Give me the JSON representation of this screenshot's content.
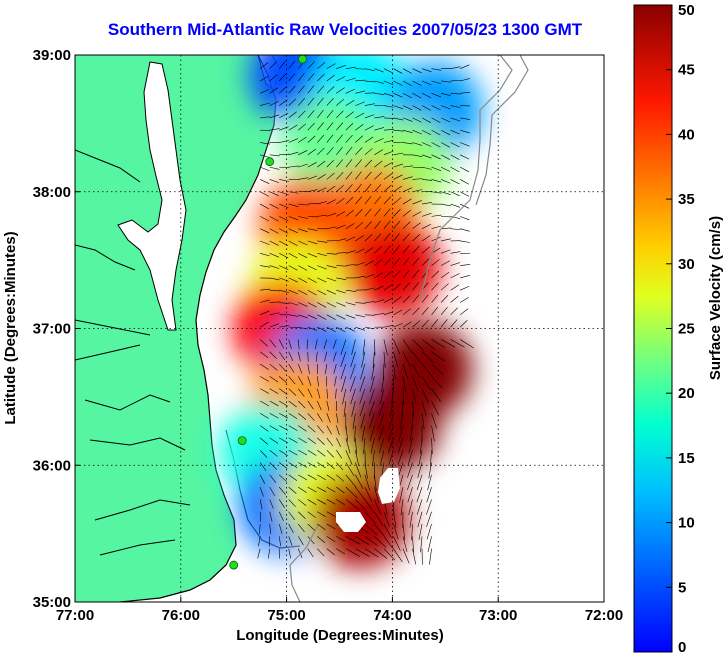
{
  "title": "Southern Mid-Atlantic Raw Velocities 2007/05/23 1300 GMT",
  "map": {
    "xlabel": "Longitude (Degrees:Minutes)",
    "ylabel": "Latitude (Degrees:Minutes)",
    "lon_range": [
      -77,
      -72
    ],
    "lat_range": [
      35,
      39
    ],
    "lon_ticks": [
      "77:00",
      "76:00",
      "75:00",
      "74:00",
      "73:00",
      "72:00"
    ],
    "lat_ticks": [
      "39:00",
      "38:00",
      "37:00",
      "36:00",
      "35:00"
    ],
    "grid": "dotted",
    "colors": {
      "land": "#55f5a2",
      "water": "#ffffff",
      "coastline": "#000000",
      "shelf_contours": "#888888",
      "stations": "#22dd22",
      "vectors": "#000000"
    }
  },
  "colorbar": {
    "label": "Surface Velocity (cm/s)",
    "range": [
      0,
      50
    ],
    "ticks": [
      "0",
      "5",
      "10",
      "15",
      "20",
      "25",
      "30",
      "35",
      "40",
      "45",
      "50"
    ],
    "colormap": "jet"
  },
  "field_regions": [
    {
      "lon": -74.9,
      "lat": 38.85,
      "speed": 10
    },
    {
      "lon": -74.3,
      "lat": 38.75,
      "speed": 18
    },
    {
      "lon": -73.6,
      "lat": 38.6,
      "speed": 14
    },
    {
      "lon": -74.6,
      "lat": 38.35,
      "speed": 24
    },
    {
      "lon": -73.9,
      "lat": 38.2,
      "speed": 26
    },
    {
      "lon": -74.2,
      "lat": 37.85,
      "speed": 38
    },
    {
      "lon": -74.8,
      "lat": 37.75,
      "speed": 40
    },
    {
      "lon": -74.0,
      "lat": 37.45,
      "speed": 45
    },
    {
      "lon": -74.9,
      "lat": 37.3,
      "speed": 30
    },
    {
      "lon": -75.05,
      "lat": 37.0,
      "speed": 44
    },
    {
      "lon": -74.7,
      "lat": 36.75,
      "speed": 12
    },
    {
      "lon": -74.9,
      "lat": 36.45,
      "speed": 36
    },
    {
      "lon": -75.2,
      "lat": 36.1,
      "speed": 20
    },
    {
      "lon": -75.0,
      "lat": 35.7,
      "speed": 12
    },
    {
      "lon": -74.6,
      "lat": 35.75,
      "speed": 30
    },
    {
      "lon": -74.0,
      "lat": 36.3,
      "speed": 50
    },
    {
      "lon": -74.3,
      "lat": 35.6,
      "speed": 48
    },
    {
      "lon": -73.7,
      "lat": 36.7,
      "speed": 50
    }
  ],
  "stations": [
    {
      "lon": -74.85,
      "lat": 38.97
    },
    {
      "lon": -75.16,
      "lat": 38.22
    },
    {
      "lon": -75.42,
      "lat": 36.18
    },
    {
      "lon": -75.5,
      "lat": 35.27
    }
  ]
}
